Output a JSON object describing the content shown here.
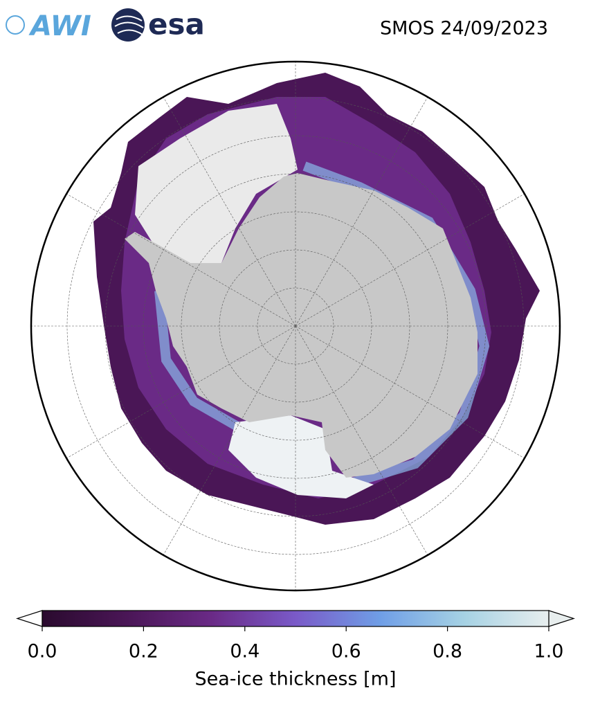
{
  "header": {
    "logos": [
      "AWI",
      "esa"
    ],
    "title": "SMOS 24/09/2023"
  },
  "colorbar": {
    "label": "Sea-ice thickness [m]",
    "lim": [
      0,
      1
    ],
    "ticks": [
      {
        "value": 0,
        "label": "0.0"
      },
      {
        "value": 0.2,
        "label": "0.2"
      },
      {
        "value": 0.4,
        "label": "0.4"
      },
      {
        "value": 0.6,
        "label": "0.6"
      },
      {
        "value": 0.8,
        "label": "0.8"
      },
      {
        "value": 1,
        "label": "1.0"
      }
    ],
    "colors": [
      "#2a0a2e",
      "#4a1656",
      "#6a2a86",
      "#7a5ac8",
      "#6f9ee6",
      "#a6d2e4",
      "#e8eeee"
    ]
  }
}
